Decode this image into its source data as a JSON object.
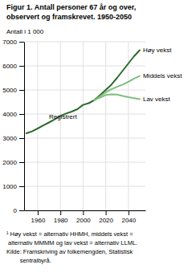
{
  "chart_data": {
    "type": "line",
    "title": "Figur 1. Antall personer 67 år og over,\nobservert og framskrevet. 1950-2050",
    "y_label": "Antall i 1 000",
    "footnotes": [
      "¹ Høy vekst = alternativ HHMH, middels vekst =",
      " alternativ MMMM og lav vekst = alternativ LLML.",
      "Kilde: Framskriving av folkemengden, Statistisk",
      "        sentralbyrå."
    ],
    "xlim": [
      1948,
      2055
    ],
    "xticks": [
      1960,
      1980,
      2000,
      2020,
      2040
    ],
    "ylim": [
      0,
      7000
    ],
    "yticks": [
      0,
      1000,
      2000,
      3000,
      4000,
      5000,
      6000,
      7000
    ],
    "grid": true,
    "series": [
      {
        "name": "Registrert",
        "color": "#2d6a2d",
        "x": [
          1950,
          1955,
          1960,
          1965,
          1970,
          1975,
          1980,
          1985,
          1990,
          1995,
          2000,
          2005,
          2010,
          2012
        ],
        "values": [
          3200,
          3280,
          3400,
          3530,
          3650,
          3780,
          3920,
          4020,
          4100,
          4200,
          4380,
          4450,
          4580,
          4650
        ]
      },
      {
        "name": "Høy vekst",
        "color": "#2d6a2d",
        "x": [
          2010,
          2015,
          2020,
          2025,
          2030,
          2035,
          2040,
          2045,
          2050
        ],
        "values": [
          4580,
          4780,
          5000,
          5220,
          5500,
          5800,
          6100,
          6400,
          6650
        ]
      },
      {
        "name": "Middels vekst",
        "color": "#7fbf7f",
        "x": [
          2010,
          2015,
          2020,
          2025,
          2030,
          2035,
          2040,
          2045,
          2050
        ],
        "values": [
          4580,
          4730,
          4900,
          5030,
          5130,
          5220,
          5340,
          5470,
          5580
        ]
      },
      {
        "name": "Lav vekst",
        "color": "#7fbf7f",
        "x": [
          2010,
          2015,
          2020,
          2025,
          2030,
          2035,
          2040,
          2045,
          2050
        ],
        "values": [
          4580,
          4680,
          4790,
          4820,
          4810,
          4750,
          4700,
          4660,
          4620
        ]
      }
    ]
  }
}
